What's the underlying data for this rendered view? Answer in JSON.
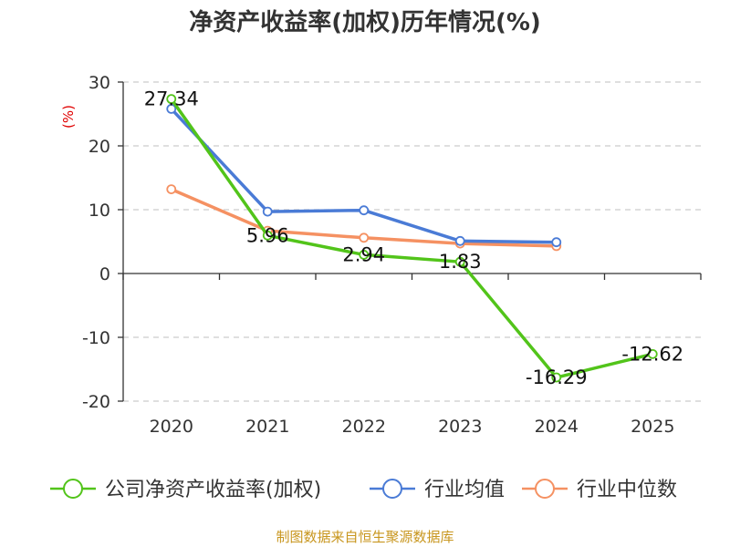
{
  "chart_data": {
    "type": "line",
    "title": "净资产收益率(加权)历年情况(%)",
    "ylabel": "(%)",
    "xlabel": "",
    "ylim": [
      -20,
      30
    ],
    "yticks": [
      30,
      20,
      10,
      0,
      -10,
      -20
    ],
    "ytick_labels": [
      "30",
      "20",
      "10",
      "0",
      "-10",
      "-20"
    ],
    "categories": [
      "2020",
      "2021",
      "2022",
      "2023",
      "2024",
      "2025"
    ],
    "grid": true,
    "legend_position": "bottom",
    "series": [
      {
        "name": "公司净资产收益率(加权)",
        "color": "#52c41a",
        "values": [
          27.34,
          5.96,
          2.94,
          1.83,
          -16.29,
          -12.62
        ],
        "labels": [
          "27.34",
          "5.96",
          "2.94",
          "1.83",
          "-16.29",
          "-12.62"
        ]
      },
      {
        "name": "行业均值",
        "color": "#4a7bd6",
        "values": [
          25.8,
          9.7,
          9.9,
          5.1,
          4.9,
          null
        ]
      },
      {
        "name": "行业中位数",
        "color": "#f59162",
        "values": [
          13.2,
          6.7,
          5.6,
          4.7,
          4.3,
          null
        ]
      }
    ]
  },
  "source": "制图数据来自恒生聚源数据库"
}
